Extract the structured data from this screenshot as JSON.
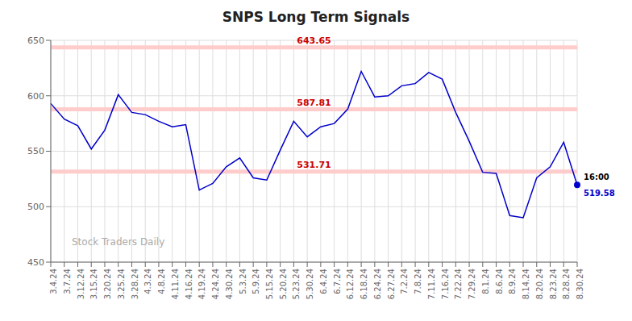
{
  "chart_data": {
    "type": "line",
    "title": "SNPS Long Term Signals",
    "categories": [
      "3.4.24",
      "3.7.24",
      "3.12.24",
      "3.15.24",
      "3.20.24",
      "3.25.24",
      "3.28.24",
      "4.3.24",
      "4.8.24",
      "4.11.24",
      "4.16.24",
      "4.19.24",
      "4.24.24",
      "4.30.24",
      "5.3.24",
      "5.9.24",
      "5.15.24",
      "5.20.24",
      "5.23.24",
      "5.30.24",
      "6.4.24",
      "6.7.24",
      "6.12.24",
      "6.18.24",
      "6.24.24",
      "6.27.24",
      "7.2.24",
      "7.8.24",
      "7.11.24",
      "7.16.24",
      "7.22.24",
      "7.29.24",
      "8.1.24",
      "8.6.24",
      "8.9.24",
      "8.14.24",
      "8.20.24",
      "8.23.24",
      "8.28.24",
      "8.30.24"
    ],
    "values": [
      593,
      579,
      573,
      552,
      569,
      601,
      585,
      583,
      577,
      572,
      574,
      515,
      521,
      536,
      544,
      526,
      524,
      551,
      577,
      563,
      572,
      575,
      588,
      622,
      599,
      600,
      609,
      611,
      621,
      615,
      585,
      559,
      531,
      530,
      492,
      490,
      526,
      536,
      558,
      519.58
    ],
    "color": "#0000cc",
    "ylim": [
      450,
      650
    ],
    "yticks": [
      450,
      500,
      550,
      600,
      650
    ],
    "grid": true,
    "reference_lines": [
      {
        "value": 643.65,
        "label": "643.65",
        "color": "#cc0000",
        "band_color": "#ffcccc"
      },
      {
        "value": 587.81,
        "label": "587.81",
        "color": "#cc0000",
        "band_color": "#ffcccc"
      },
      {
        "value": 531.71,
        "label": "531.71",
        "color": "#cc0000",
        "band_color": "#ffcccc"
      }
    ],
    "annotations": [
      {
        "text": "16:00",
        "x": "8.30.24",
        "y": 519.58
      },
      {
        "text": "519.58",
        "x": "8.30.24",
        "y": 519.58
      },
      {
        "text": "Stock Traders Daily"
      }
    ]
  }
}
